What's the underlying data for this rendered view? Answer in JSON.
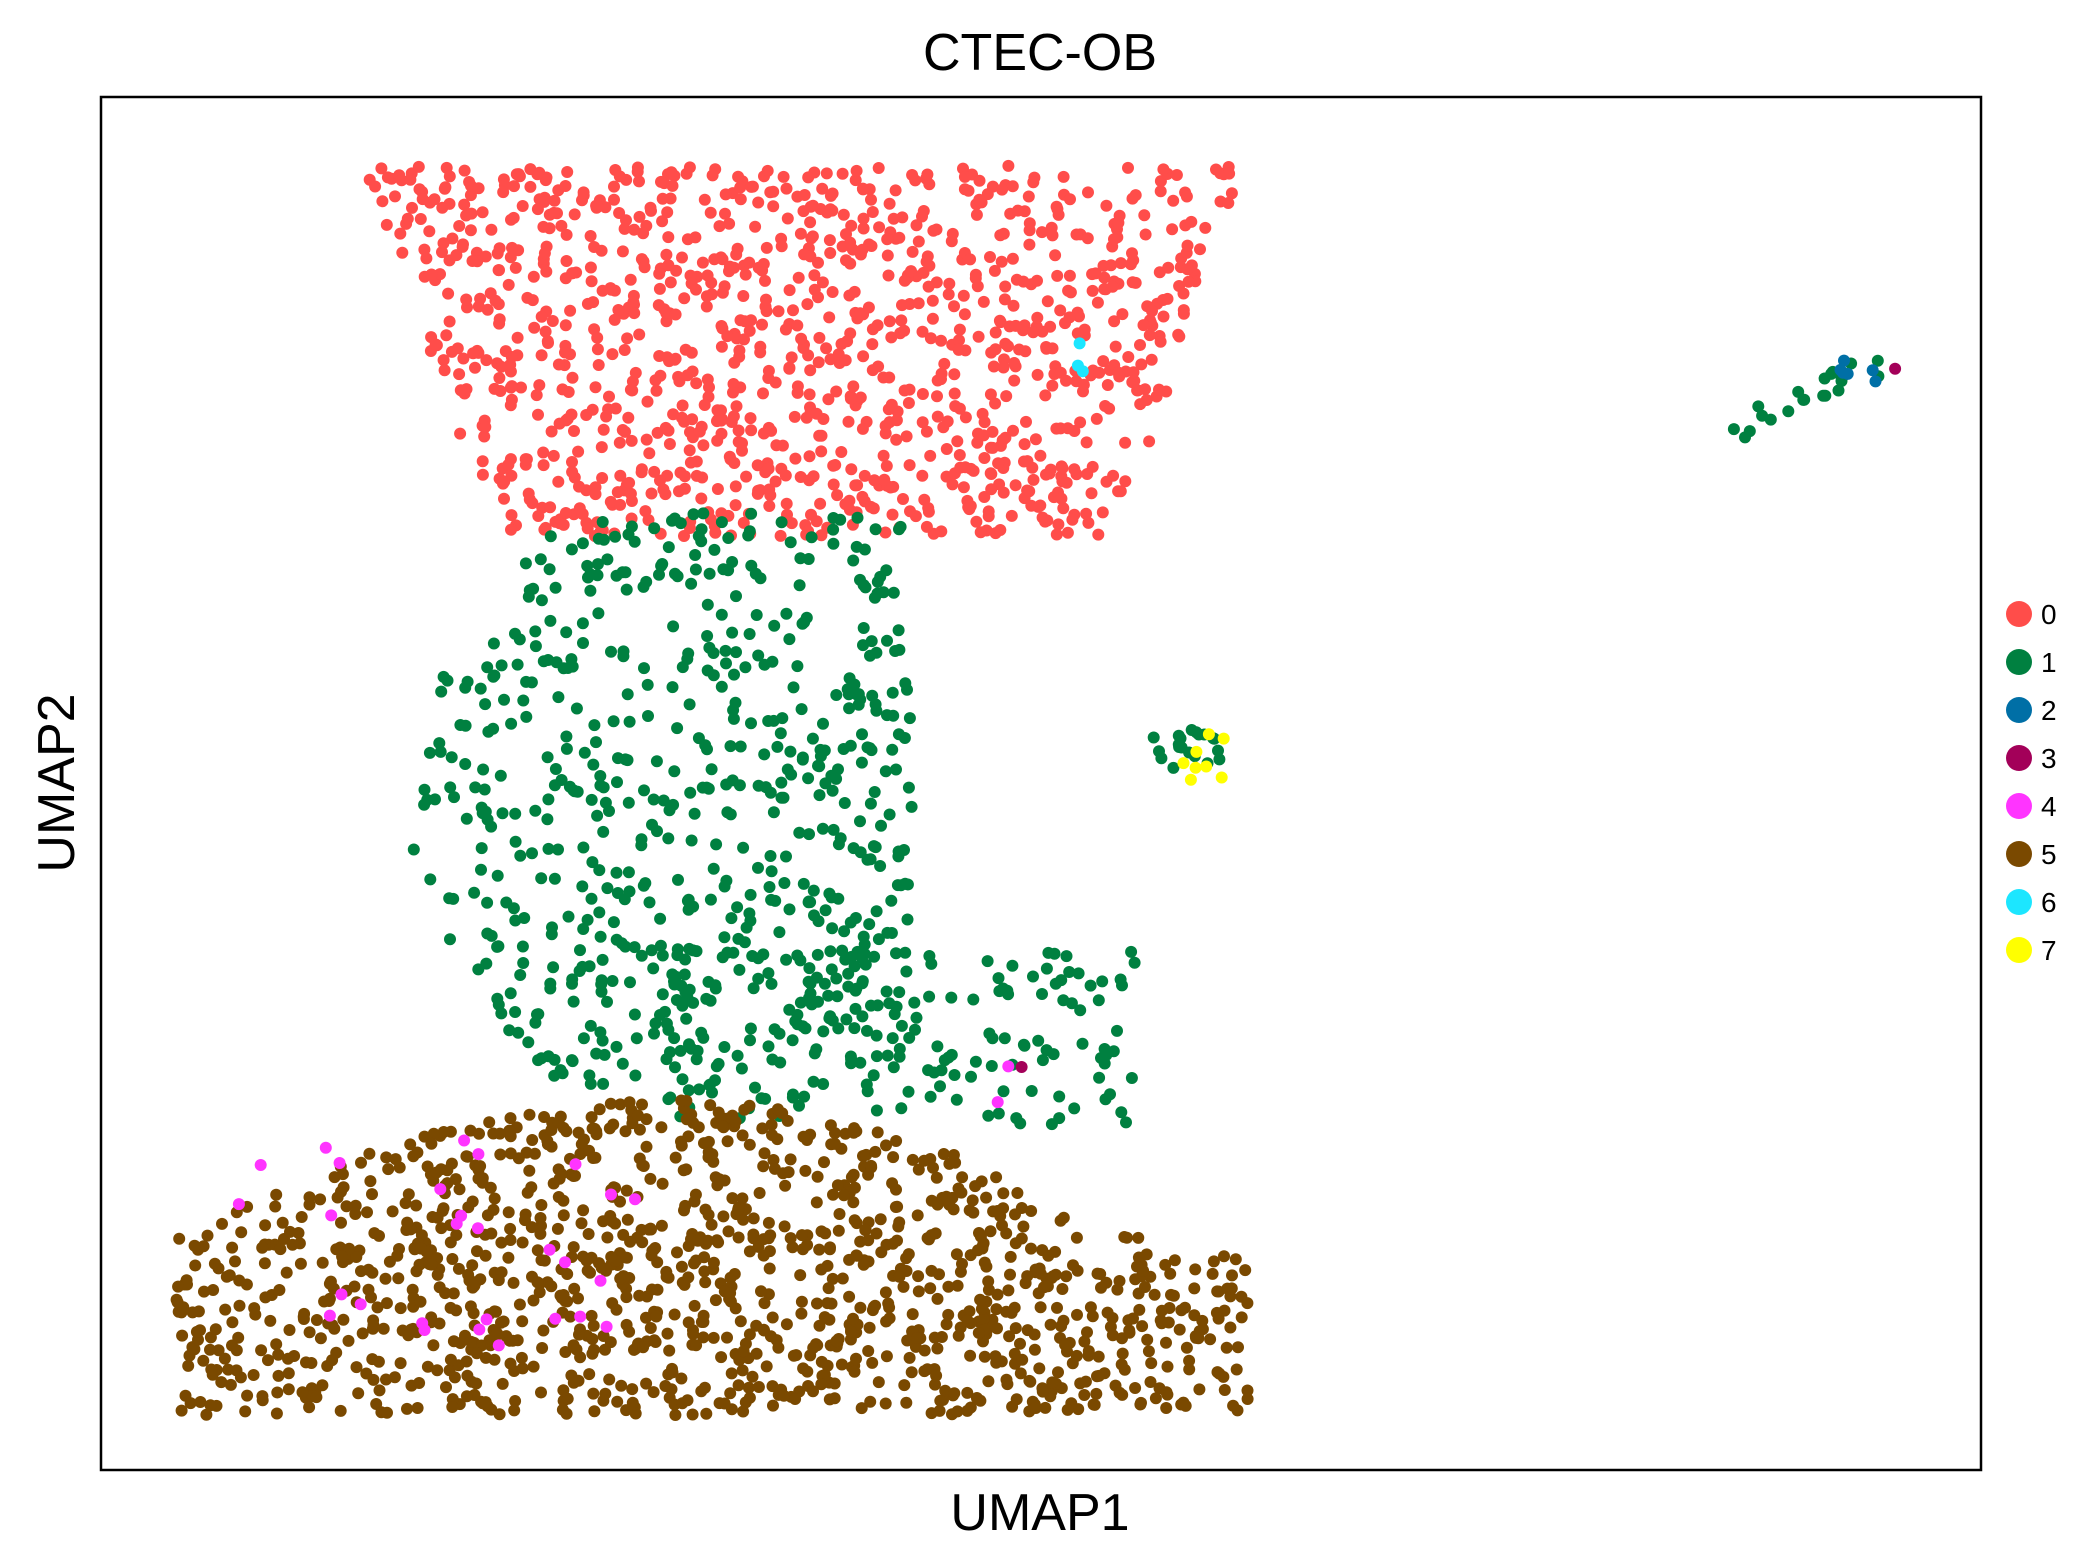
{
  "chart_data": {
    "type": "scatter",
    "title": "CTEC-OB",
    "xlabel": "UMAP1",
    "ylabel": "UMAP2",
    "xlim": [
      0,
      100
    ],
    "ylim": [
      0,
      100
    ],
    "grid": false,
    "ticks": false,
    "legend_position": "right",
    "series": [
      {
        "name": "0",
        "color": "#ff4d4a"
      },
      {
        "name": "1",
        "color": "#008040"
      },
      {
        "name": "2",
        "color": "#006fa6"
      },
      {
        "name": "3",
        "color": "#a30059"
      },
      {
        "name": "4",
        "color": "#ff34ff"
      },
      {
        "name": "5",
        "color": "#7a4900"
      },
      {
        "name": "6",
        "color": "#1ce6ff"
      },
      {
        "name": "7",
        "color": "#ffff00"
      }
    ],
    "clusters": [
      {
        "series": 0,
        "count": 1150,
        "x": [
          14,
          61
        ],
        "y": [
          68,
          95
        ],
        "shape": "dome",
        "seed": 11
      },
      {
        "series": 1,
        "count": 620,
        "x": [
          16,
          48
        ],
        "y": [
          27,
          70
        ],
        "shape": "column",
        "seed": 22
      },
      {
        "series": 1,
        "count": 160,
        "x": [
          30,
          55
        ],
        "y": [
          25,
          38
        ],
        "shape": "band",
        "seed": 23
      },
      {
        "series": 1,
        "count": 20,
        "x": [
          55,
          60
        ],
        "y": [
          51,
          54
        ],
        "shape": "blob",
        "seed": 24
      },
      {
        "series": 1,
        "count": 22,
        "x": [
          86,
          95
        ],
        "y": [
          75,
          81
        ],
        "shape": "streak",
        "seed": 25
      },
      {
        "series": 5,
        "count": 1280,
        "x": [
          4,
          61
        ],
        "y": [
          4,
          27
        ],
        "shape": "bottom",
        "seed": 55
      },
      {
        "series": 4,
        "count": 28,
        "x": [
          5,
          30
        ],
        "y": [
          7,
          25
        ],
        "shape": "blob",
        "seed": 44
      },
      {
        "series": 4,
        "count": 2,
        "x": [
          47,
          49
        ],
        "y": [
          26,
          30
        ],
        "shape": "blob",
        "seed": 45
      },
      {
        "series": 2,
        "count": 6,
        "x": [
          92,
          95
        ],
        "y": [
          79,
          81
        ],
        "shape": "blob",
        "seed": 66
      },
      {
        "series": 3,
        "count": 1,
        "x": [
          95,
          95.5
        ],
        "y": [
          80,
          80.5
        ],
        "shape": "blob",
        "seed": 67
      },
      {
        "series": 3,
        "count": 1,
        "x": [
          48.5,
          49
        ],
        "y": [
          29,
          29.5
        ],
        "shape": "blob",
        "seed": 68
      },
      {
        "series": 6,
        "count": 3,
        "x": [
          50,
          54
        ],
        "y": [
          79,
          83
        ],
        "shape": "blob",
        "seed": 77
      },
      {
        "series": 7,
        "count": 8,
        "x": [
          56,
          61
        ],
        "y": [
          50,
          54
        ],
        "shape": "blob",
        "seed": 88
      }
    ]
  }
}
